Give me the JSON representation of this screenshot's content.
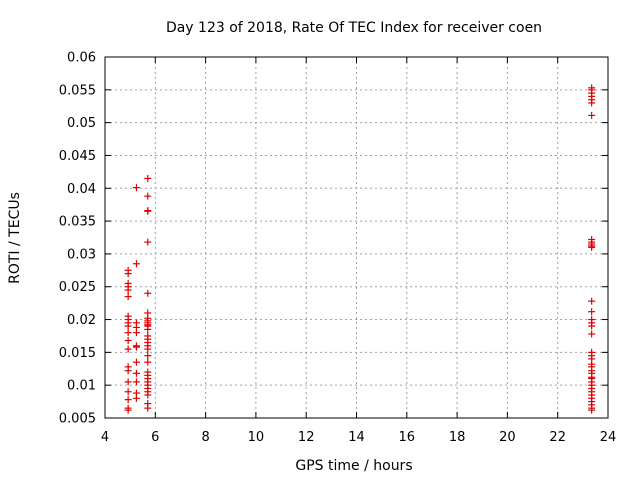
{
  "chart_data": {
    "type": "scatter",
    "title": "Day 123 of 2018, Rate Of TEC Index for receiver coen",
    "xlabel": "GPS time / hours",
    "ylabel": "ROTI / TECUs",
    "xlim": [
      4,
      24
    ],
    "ylim": [
      0.005,
      0.06
    ],
    "xticks": [
      4,
      6,
      8,
      10,
      12,
      14,
      16,
      18,
      20,
      22,
      24
    ],
    "yticks": [
      0.005,
      0.01,
      0.015,
      0.02,
      0.025,
      0.03,
      0.035,
      0.04,
      0.045,
      0.05,
      0.055,
      0.06
    ],
    "grid": true,
    "marker": "+",
    "color": "#e00000",
    "series": [
      {
        "name": "ROTI",
        "points": [
          [
            4.92,
            0.0275
          ],
          [
            4.92,
            0.027
          ],
          [
            4.92,
            0.0255
          ],
          [
            4.92,
            0.025
          ],
          [
            4.92,
            0.0245
          ],
          [
            4.92,
            0.0235
          ],
          [
            4.92,
            0.0205
          ],
          [
            4.92,
            0.02
          ],
          [
            4.92,
            0.0195
          ],
          [
            4.92,
            0.019
          ],
          [
            4.92,
            0.018
          ],
          [
            4.92,
            0.0168
          ],
          [
            4.92,
            0.0155
          ],
          [
            4.92,
            0.0128
          ],
          [
            4.92,
            0.0122
          ],
          [
            4.92,
            0.0105
          ],
          [
            4.92,
            0.009
          ],
          [
            4.92,
            0.0078
          ],
          [
            4.92,
            0.0065
          ],
          [
            4.92,
            0.0062
          ],
          [
            5.25,
            0.0401
          ],
          [
            5.25,
            0.0285
          ],
          [
            5.25,
            0.0195
          ],
          [
            5.25,
            0.0188
          ],
          [
            5.25,
            0.018
          ],
          [
            5.25,
            0.016
          ],
          [
            5.25,
            0.0158
          ],
          [
            5.25,
            0.0135
          ],
          [
            5.25,
            0.0118
          ],
          [
            5.25,
            0.0105
          ],
          [
            5.25,
            0.0088
          ],
          [
            5.25,
            0.008
          ],
          [
            5.7,
            0.0415
          ],
          [
            5.7,
            0.0388
          ],
          [
            5.7,
            0.0366
          ],
          [
            5.7,
            0.0365
          ],
          [
            5.7,
            0.0318
          ],
          [
            5.7,
            0.024
          ],
          [
            5.7,
            0.021
          ],
          [
            5.7,
            0.0202
          ],
          [
            5.7,
            0.0198
          ],
          [
            5.7,
            0.0195
          ],
          [
            5.7,
            0.0192
          ],
          [
            5.7,
            0.019
          ],
          [
            5.7,
            0.0185
          ],
          [
            5.7,
            0.0175
          ],
          [
            5.7,
            0.017
          ],
          [
            5.7,
            0.0165
          ],
          [
            5.7,
            0.016
          ],
          [
            5.7,
            0.0155
          ],
          [
            5.7,
            0.0145
          ],
          [
            5.7,
            0.0135
          ],
          [
            5.7,
            0.012
          ],
          [
            5.7,
            0.0115
          ],
          [
            5.7,
            0.011
          ],
          [
            5.7,
            0.0105
          ],
          [
            5.7,
            0.01
          ],
          [
            5.7,
            0.0095
          ],
          [
            5.7,
            0.009
          ],
          [
            5.7,
            0.0085
          ],
          [
            5.7,
            0.0072
          ],
          [
            5.7,
            0.0065
          ],
          [
            23.35,
            0.0553
          ],
          [
            23.35,
            0.055
          ],
          [
            23.35,
            0.0545
          ],
          [
            23.35,
            0.054
          ],
          [
            23.35,
            0.0535
          ],
          [
            23.35,
            0.053
          ],
          [
            23.35,
            0.0511
          ],
          [
            23.35,
            0.0322
          ],
          [
            23.35,
            0.0318
          ],
          [
            23.35,
            0.0315
          ],
          [
            23.35,
            0.0312
          ],
          [
            23.35,
            0.031
          ],
          [
            23.35,
            0.0228
          ],
          [
            23.35,
            0.0212
          ],
          [
            23.35,
            0.02
          ],
          [
            23.35,
            0.0195
          ],
          [
            23.35,
            0.019
          ],
          [
            23.35,
            0.0178
          ],
          [
            23.35,
            0.015
          ],
          [
            23.35,
            0.0145
          ],
          [
            23.35,
            0.014
          ],
          [
            23.35,
            0.0132
          ],
          [
            23.35,
            0.0128
          ],
          [
            23.35,
            0.0122
          ],
          [
            23.35,
            0.0118
          ],
          [
            23.35,
            0.0112
          ],
          [
            23.35,
            0.011
          ],
          [
            23.35,
            0.0105
          ],
          [
            23.35,
            0.01
          ],
          [
            23.35,
            0.0095
          ],
          [
            23.35,
            0.009
          ],
          [
            23.35,
            0.0085
          ],
          [
            23.35,
            0.008
          ],
          [
            23.35,
            0.0075
          ],
          [
            23.35,
            0.007
          ],
          [
            23.35,
            0.0065
          ],
          [
            23.35,
            0.0062
          ]
        ]
      }
    ]
  }
}
